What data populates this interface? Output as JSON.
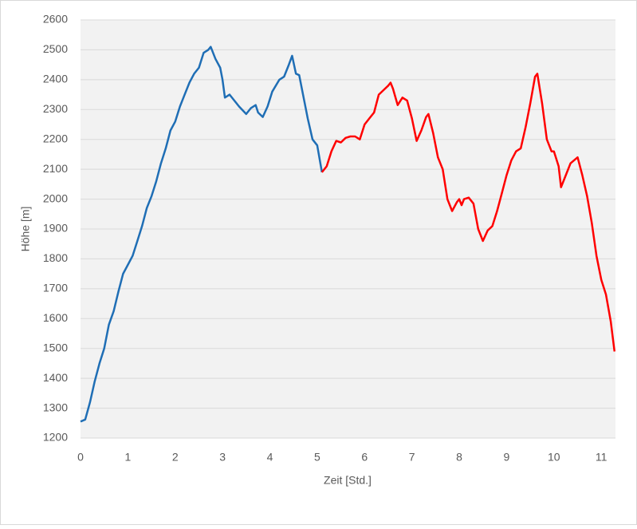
{
  "chart_data": {
    "type": "line",
    "xlabel": "Zeit [Std.]",
    "ylabel": "Höhe [m]",
    "xlim": [
      0,
      11.3
    ],
    "ylim": [
      1200,
      2600
    ],
    "xticks": [
      0,
      1,
      2,
      3,
      4,
      5,
      6,
      7,
      8,
      9,
      10,
      11
    ],
    "yticks": [
      1200,
      1300,
      1400,
      1500,
      1600,
      1700,
      1800,
      1900,
      2000,
      2100,
      2200,
      2300,
      2400,
      2500,
      2600
    ],
    "grid": true,
    "series": [
      {
        "color": "#1f6eb5",
        "x": [
          0,
          0.1,
          0.2,
          0.3,
          0.4,
          0.5,
          0.6,
          0.7,
          0.8,
          0.9,
          1.0,
          1.1,
          1.2,
          1.3,
          1.4,
          1.5,
          1.6,
          1.7,
          1.8,
          1.9,
          2.0,
          2.1,
          2.2,
          2.3,
          2.4,
          2.5,
          2.6,
          2.7,
          2.75,
          2.85,
          2.95,
          3.0,
          3.05,
          3.15,
          3.25,
          3.35,
          3.5,
          3.6,
          3.7,
          3.75,
          3.85,
          3.95,
          4.05,
          4.2,
          4.3,
          4.4,
          4.47,
          4.55,
          4.62,
          4.7,
          4.8,
          4.9,
          5.0,
          5.1
        ],
        "values": [
          1255,
          1262,
          1320,
          1390,
          1450,
          1500,
          1580,
          1625,
          1690,
          1750,
          1780,
          1810,
          1860,
          1910,
          1970,
          2010,
          2060,
          2120,
          2170,
          2230,
          2260,
          2310,
          2350,
          2390,
          2420,
          2440,
          2490,
          2500,
          2510,
          2470,
          2440,
          2400,
          2340,
          2350,
          2330,
          2310,
          2285,
          2305,
          2315,
          2290,
          2275,
          2310,
          2360,
          2400,
          2410,
          2450,
          2480,
          2420,
          2415,
          2350,
          2270,
          2200,
          2180,
          2090
        ]
      },
      {
        "color": "#ff0000",
        "x": [
          5.1,
          5.2,
          5.3,
          5.4,
          5.5,
          5.6,
          5.7,
          5.8,
          5.9,
          6.0,
          6.1,
          6.2,
          6.3,
          6.4,
          6.5,
          6.55,
          6.6,
          6.7,
          6.8,
          6.9,
          7.0,
          7.1,
          7.2,
          7.3,
          7.35,
          7.45,
          7.55,
          7.65,
          7.75,
          7.85,
          7.95,
          8.0,
          8.05,
          8.1,
          8.2,
          8.3,
          8.4,
          8.5,
          8.6,
          8.7,
          8.8,
          8.9,
          9.0,
          9.1,
          9.2,
          9.3,
          9.4,
          9.5,
          9.6,
          9.65,
          9.75,
          9.85,
          9.95,
          10.0,
          10.1,
          10.15,
          10.25,
          10.35,
          10.5,
          10.6,
          10.7,
          10.8,
          10.9,
          11.0,
          11.1,
          11.2,
          11.28
        ],
        "values": [
          2090,
          2110,
          2160,
          2195,
          2190,
          2205,
          2210,
          2210,
          2200,
          2250,
          2270,
          2290,
          2350,
          2365,
          2380,
          2390,
          2370,
          2315,
          2340,
          2330,
          2270,
          2195,
          2230,
          2275,
          2285,
          2220,
          2140,
          2100,
          2000,
          1960,
          1990,
          2000,
          1980,
          2000,
          2005,
          1985,
          1900,
          1860,
          1895,
          1910,
          1960,
          2020,
          2080,
          2130,
          2160,
          2170,
          2240,
          2320,
          2410,
          2420,
          2320,
          2200,
          2160,
          2160,
          2110,
          2040,
          2080,
          2120,
          2140,
          2080,
          2010,
          1920,
          1810,
          1730,
          1680,
          1590,
          1490
        ]
      }
    ]
  }
}
